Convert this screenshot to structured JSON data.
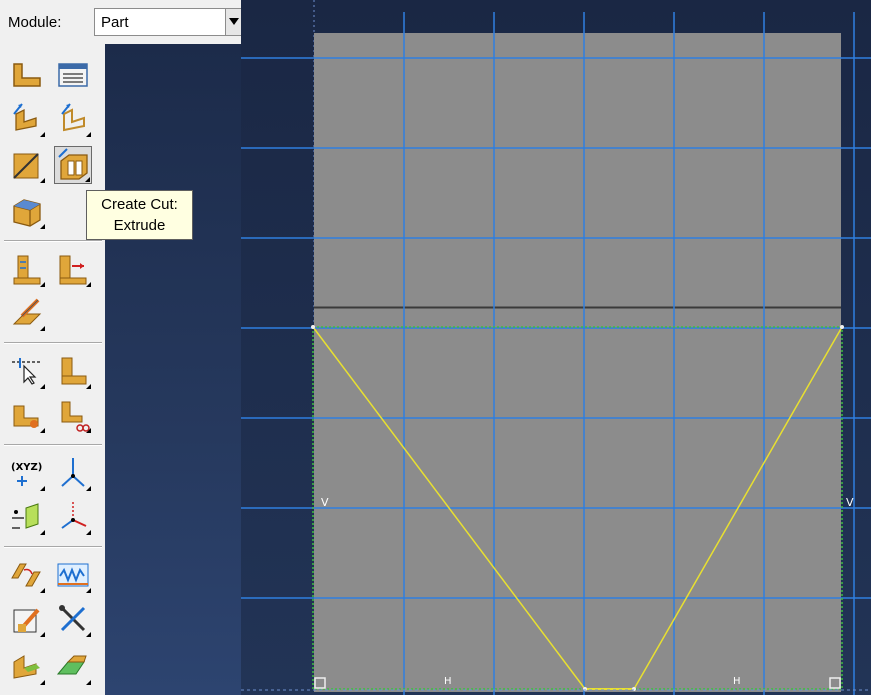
{
  "module": {
    "label": "Module:",
    "value": "Part"
  },
  "tooltip": {
    "line1": "Create Cut:",
    "line2": "Extrude"
  },
  "toolbox": {
    "tools": [
      "create-part-icon",
      "part-manager-icon",
      "create-solid-extrude-icon",
      "create-shell-extrude-icon",
      "create-wire-icon",
      "create-cut-extrude-icon",
      "create-solid-block-icon",
      "create-round-fillet-icon",
      "create-chamfer-icon",
      "create-datum-icon",
      "partition-edge-icon",
      "partition-face-icon",
      "partition-cell-icon",
      "partition-split-icon",
      "create-datum-point-icon",
      "create-datum-axis-icon",
      "create-datum-plane-icon",
      "create-datum-csys-icon",
      "mirror-icon",
      "spring-dashpot-icon",
      "edit-part-icon",
      "tools-icon",
      "create-solid-revolve-icon",
      "create-solid-sweep-icon"
    ]
  },
  "sketch": {
    "constraint_labels": {
      "vertical_left": "V",
      "vertical_right": "V",
      "horizontal_left": "H",
      "horizontal_right": "H"
    },
    "colors": {
      "grid": "#2f7fe0",
      "part_fill": "#8c8c8c",
      "sketch_line": "#e8e030",
      "profile_border": "#3fbf3f",
      "part_edge": "#3a3a3a"
    }
  }
}
